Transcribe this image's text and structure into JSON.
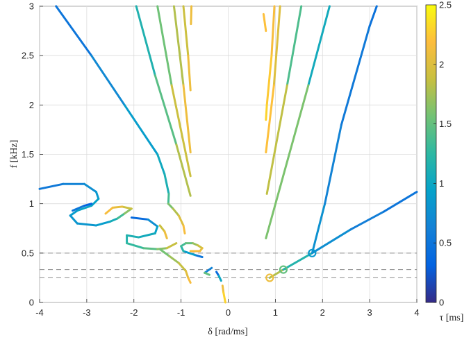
{
  "chart_data": {
    "type": "line",
    "xlabel": "δ [rad/ms]",
    "ylabel": "f [kHz]",
    "xlim": [
      -4,
      4
    ],
    "ylim": [
      0,
      3
    ],
    "xticks": [
      "-4",
      "-3",
      "-2",
      "-1",
      "0",
      "1",
      "2",
      "3",
      "4"
    ],
    "yticks": [
      "0",
      "0.5",
      "1",
      "1.5",
      "2",
      "2.5",
      "3"
    ],
    "grid": true,
    "colorbar": {
      "label": "τ [ms]",
      "range": [
        0,
        2.5
      ],
      "ticks": [
        "0",
        "0.5",
        "1",
        "1.5",
        "2",
        "2.5"
      ],
      "colormap": "parula"
    },
    "reference_lines_f": [
      0.25,
      0.333,
      0.5
    ],
    "markers": [
      {
        "x": 0.88,
        "y": 0.25,
        "tau": 2.1
      },
      {
        "x": 1.17,
        "y": 0.333,
        "tau": 1.5
      },
      {
        "x": 1.78,
        "y": 0.5,
        "tau": 0.85
      }
    ],
    "curves": [
      {
        "points": [
          [
            -3.65,
            3.0
          ],
          [
            -2.9,
            2.5
          ],
          [
            -2.2,
            2.0
          ],
          [
            -1.5,
            1.5
          ],
          [
            -1.35,
            1.3
          ]
        ],
        "tau": [
          0.4,
          0.6,
          0.8,
          1.0,
          1.05
        ]
      },
      {
        "points": [
          [
            -1.35,
            1.3
          ],
          [
            -1.26,
            1.1
          ],
          [
            -1.27,
            1.0
          ],
          [
            -1.17,
            0.95
          ],
          [
            -1.05,
            0.88
          ],
          [
            -0.95,
            0.78
          ],
          [
            -0.92,
            0.7
          ]
        ],
        "tau": [
          1.05,
          1.2,
          1.5,
          1.7,
          1.9,
          2.1,
          2.2
        ]
      },
      {
        "points": [
          [
            -1.95,
            3.0
          ],
          [
            -1.55,
            2.3
          ],
          [
            -1.1,
            1.6
          ],
          [
            -0.8,
            1.08
          ]
        ],
        "tau": [
          1.0,
          1.3,
          1.6,
          2.0
        ]
      },
      {
        "points": [
          [
            -1.5,
            3.0
          ],
          [
            -1.2,
            2.2
          ],
          [
            -0.8,
            1.28
          ]
        ],
        "tau": [
          1.4,
          1.7,
          2.1
        ]
      },
      {
        "points": [
          [
            -1.15,
            3.0
          ],
          [
            -0.95,
            2.2
          ],
          [
            -0.8,
            1.52
          ]
        ],
        "tau": [
          1.6,
          2.0,
          2.2
        ]
      },
      {
        "points": [
          [
            -0.95,
            3.0
          ],
          [
            -0.85,
            2.5
          ],
          [
            -0.8,
            2.15
          ]
        ],
        "tau": [
          1.8,
          2.0,
          2.2
        ]
      },
      {
        "points": [
          [
            -0.78,
            3.0
          ],
          [
            -0.79,
            2.82
          ]
        ],
        "tau": [
          2.0,
          2.2
        ]
      },
      {
        "points": [
          [
            -4.0,
            1.15
          ],
          [
            -3.5,
            1.2
          ],
          [
            -3.05,
            1.2
          ],
          [
            -2.8,
            1.12
          ],
          [
            -2.75,
            1.05
          ],
          [
            -2.9,
            0.98
          ],
          [
            -3.2,
            0.93
          ],
          [
            -3.35,
            0.88
          ],
          [
            -3.2,
            0.8
          ],
          [
            -2.8,
            0.78
          ],
          [
            -2.5,
            0.82
          ],
          [
            -2.35,
            0.85
          ],
          [
            -2.2,
            0.9
          ],
          [
            -2.05,
            0.95
          ],
          [
            -2.25,
            0.97
          ],
          [
            -2.45,
            0.96
          ],
          [
            -2.6,
            0.9
          ]
        ],
        "tau": [
          0.5,
          0.6,
          0.7,
          0.8,
          0.9,
          1.0,
          0.95,
          0.85,
          0.8,
          0.85,
          0.95,
          1.2,
          1.5,
          1.8,
          2.0,
          2.1,
          2.2
        ]
      },
      {
        "points": [
          [
            -3.3,
            0.93
          ],
          [
            -3.05,
            0.98
          ],
          [
            -2.9,
            1.0
          ]
        ],
        "tau": [
          0.6,
          0.45,
          0.2
        ]
      },
      {
        "points": [
          [
            -2.05,
            0.86
          ],
          [
            -1.7,
            0.84
          ],
          [
            -1.5,
            0.77
          ],
          [
            -1.55,
            0.7
          ],
          [
            -1.9,
            0.66
          ],
          [
            -2.15,
            0.68
          ],
          [
            -2.15,
            0.6
          ],
          [
            -1.8,
            0.55
          ],
          [
            -1.5,
            0.54
          ],
          [
            -1.3,
            0.55
          ],
          [
            -1.1,
            0.6
          ]
        ],
        "tau": [
          0.2,
          0.6,
          0.9,
          1.0,
          1.1,
          1.15,
          1.2,
          1.35,
          1.55,
          1.75,
          2.0
        ]
      },
      {
        "points": [
          [
            -1.45,
            0.78
          ],
          [
            -1.35,
            0.72
          ],
          [
            -1.3,
            0.65
          ]
        ],
        "tau": [
          1.8,
          2.0,
          2.2
        ]
      },
      {
        "points": [
          [
            -1.45,
            0.54
          ],
          [
            -1.25,
            0.47
          ],
          [
            -1.05,
            0.4
          ],
          [
            -0.9,
            0.32
          ],
          [
            -0.85,
            0.25
          ],
          [
            -0.8,
            0.2
          ]
        ],
        "tau": [
          1.5,
          1.65,
          1.8,
          1.95,
          2.1,
          2.2
        ]
      },
      {
        "points": [
          [
            -0.55,
            0.46
          ],
          [
            -0.7,
            0.48
          ],
          [
            -0.95,
            0.52
          ],
          [
            -1.0,
            0.57
          ],
          [
            -0.9,
            0.6
          ],
          [
            -0.75,
            0.6
          ],
          [
            -0.65,
            0.58
          ],
          [
            -0.55,
            0.55
          ],
          [
            -0.6,
            0.52
          ],
          [
            -0.8,
            0.52
          ]
        ],
        "tau": [
          0.3,
          0.7,
          1.1,
          1.3,
          1.4,
          1.6,
          1.8,
          2.0,
          2.1,
          2.2
        ]
      },
      {
        "points": [
          [
            -0.35,
            0.35
          ],
          [
            -0.5,
            0.3
          ],
          [
            -0.4,
            0.28
          ]
        ],
        "tau": [
          0.3,
          1.0,
          2.0
        ]
      },
      {
        "points": [
          [
            -0.25,
            0.31
          ],
          [
            -0.2,
            0.27
          ],
          [
            -0.15,
            0.22
          ]
        ],
        "tau": [
          0.2,
          0.6,
          1.4
        ]
      },
      {
        "points": [
          [
            -0.12,
            0.17
          ],
          [
            -0.1,
            0.1
          ],
          [
            -0.06,
            0.0
          ]
        ],
        "tau": [
          2.0,
          2.2,
          2.4
        ]
      },
      {
        "points": [
          [
            0.75,
            2.92
          ],
          [
            0.8,
            2.75
          ]
        ],
        "tau": [
          2.1,
          2.3
        ]
      },
      {
        "points": [
          [
            0.98,
            3.0
          ],
          [
            0.92,
            2.5
          ],
          [
            0.82,
            2.0
          ],
          [
            0.8,
            1.85
          ]
        ],
        "tau": [
          2.1,
          2.2,
          2.3,
          2.3
        ]
      },
      {
        "points": [
          [
            1.1,
            3.0
          ],
          [
            0.97,
            2.2
          ],
          [
            0.8,
            1.52
          ]
        ],
        "tau": [
          1.9,
          2.1,
          2.3
        ]
      },
      {
        "points": [
          [
            1.55,
            3.0
          ],
          [
            1.25,
            2.2
          ],
          [
            0.82,
            1.1
          ]
        ],
        "tau": [
          1.2,
          1.6,
          2.1
        ]
      },
      {
        "points": [
          [
            2.15,
            3.0
          ],
          [
            1.7,
            2.2
          ],
          [
            0.8,
            0.65
          ]
        ],
        "tau": [
          0.9,
          1.2,
          2.0
        ]
      },
      {
        "points": [
          [
            0.88,
            0.25
          ],
          [
            1.17,
            0.333
          ],
          [
            1.78,
            0.5
          ],
          [
            2.6,
            0.74
          ],
          [
            3.3,
            0.92
          ],
          [
            4.0,
            1.12
          ]
        ],
        "tau": [
          2.1,
          1.5,
          0.85,
          0.65,
          0.55,
          0.45
        ]
      },
      {
        "points": [
          [
            1.78,
            0.5
          ],
          [
            2.05,
            1.0
          ],
          [
            2.4,
            1.8
          ],
          [
            3.0,
            2.8
          ],
          [
            3.15,
            3.0
          ]
        ],
        "tau": [
          0.85,
          0.7,
          0.6,
          0.5,
          0.45
        ]
      }
    ]
  }
}
